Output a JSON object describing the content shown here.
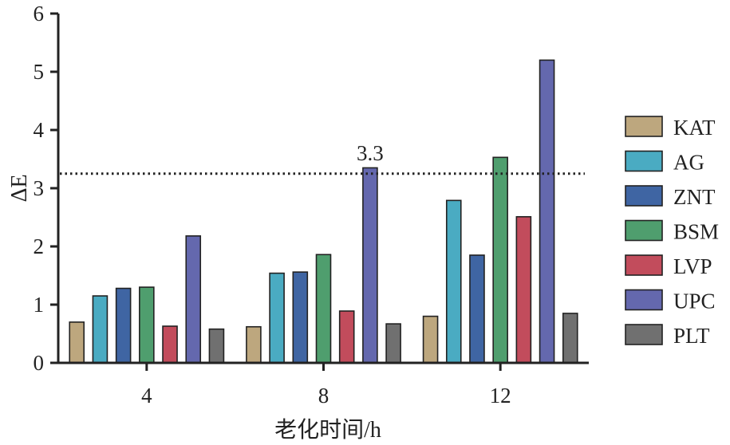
{
  "chart_data": {
    "type": "bar",
    "categories": [
      "4",
      "8",
      "12"
    ],
    "series": [
      {
        "name": "KAT",
        "color": "#bda77e",
        "values": [
          0.7,
          0.62,
          0.8
        ]
      },
      {
        "name": "AG",
        "color": "#4aabc2",
        "values": [
          1.15,
          1.54,
          2.79
        ]
      },
      {
        "name": "ZNT",
        "color": "#3f65a3",
        "values": [
          1.28,
          1.56,
          1.85
        ]
      },
      {
        "name": "BSM",
        "color": "#4f9e6e",
        "values": [
          1.3,
          1.86,
          3.53
        ]
      },
      {
        "name": "LVP",
        "color": "#c24c5c",
        "values": [
          0.63,
          0.89,
          2.51
        ]
      },
      {
        "name": "UPC",
        "color": "#6468ae",
        "values": [
          2.18,
          3.35,
          5.2
        ]
      },
      {
        "name": "PLT",
        "color": "#707070",
        "values": [
          0.58,
          0.67,
          0.85
        ]
      }
    ],
    "xlabel": "老化时间/h",
    "ylabel": "ΔE",
    "ylim": [
      0,
      6
    ],
    "yticks": [
      "0",
      "1",
      "2",
      "3",
      "4",
      "5",
      "6"
    ],
    "reference_line": {
      "value": 3.25,
      "style": "dotted",
      "label": "3.3"
    },
    "grid": false,
    "legend_position": "right"
  }
}
